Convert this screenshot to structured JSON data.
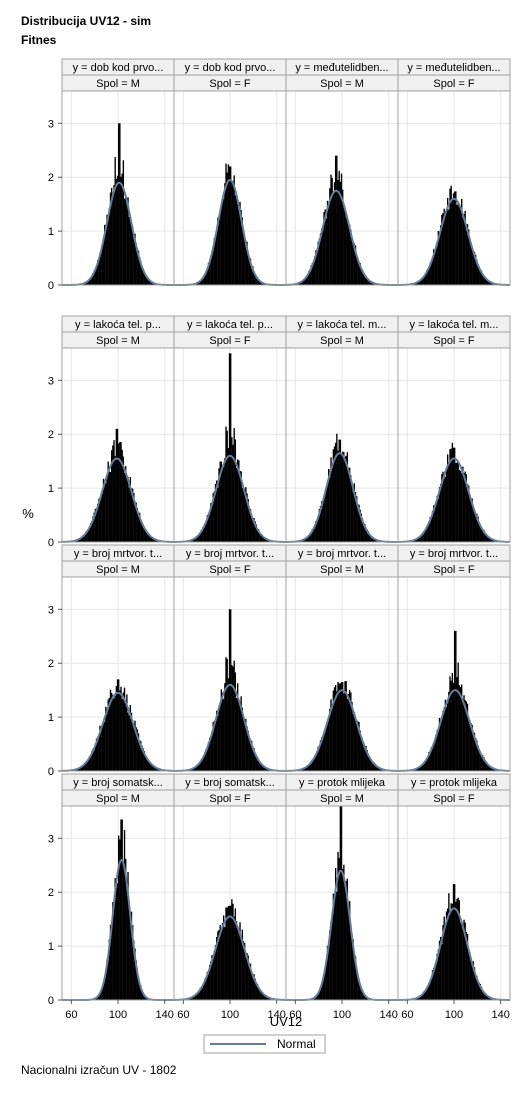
{
  "titles": {
    "title1": "Distribucija UV12 - sim",
    "title2": "Fitnes"
  },
  "footer": "Nacionalni izračun UV - 1802",
  "chart_data": {
    "type": "histogram-panel",
    "xlabel": "UV12",
    "ylabel": "%",
    "xticks": [
      60,
      100,
      140
    ],
    "yticks": [
      0,
      1,
      2,
      3
    ],
    "xlim": [
      52,
      148
    ],
    "ylim": [
      0,
      3.6
    ],
    "grid": true,
    "legend": {
      "position": "bottom",
      "items": [
        {
          "label": "Normal",
          "color": "#667b99"
        }
      ]
    },
    "colors": {
      "bars": "#000000",
      "normal": "#667b99",
      "header_bg": "#f0f0f0",
      "grid": "#e6e6e6"
    },
    "panels": [
      {
        "row": 0,
        "col": 0,
        "y": "y = dob kod prvo...",
        "spol": "Spol = M",
        "normal_peak": 1.9,
        "sd": 10.5,
        "mean": 101,
        "hist_peak": 3.0
      },
      {
        "row": 0,
        "col": 1,
        "y": "y = dob kod prvo...",
        "spol": "Spol = F",
        "normal_peak": 1.95,
        "sd": 10,
        "mean": 100,
        "hist_peak": 2.2
      },
      {
        "row": 0,
        "col": 2,
        "y": "y = međutelidben...",
        "spol": "Spol = M",
        "normal_peak": 1.75,
        "sd": 11.5,
        "mean": 95,
        "hist_peak": 2.4
      },
      {
        "row": 0,
        "col": 3,
        "y": "y = međutelidben...",
        "spol": "Spol = F",
        "normal_peak": 1.6,
        "sd": 12,
        "mean": 100,
        "hist_peak": 1.7
      },
      {
        "row": 1,
        "col": 0,
        "y": "y = lakoća tel. p...",
        "spol": "Spol = M",
        "normal_peak": 1.55,
        "sd": 12.5,
        "mean": 99,
        "hist_peak": 2.1
      },
      {
        "row": 1,
        "col": 1,
        "y": "y = lakoća tel. p...",
        "spol": "Spol = F",
        "normal_peak": 1.6,
        "sd": 12,
        "mean": 100,
        "hist_peak": 3.5
      },
      {
        "row": 1,
        "col": 2,
        "y": "y = lakoća tel. m...",
        "spol": "Spol = M",
        "normal_peak": 1.65,
        "sd": 11.5,
        "mean": 98,
        "hist_peak": 1.9
      },
      {
        "row": 1,
        "col": 3,
        "y": "y = lakoća tel. m...",
        "spol": "Spol = F",
        "normal_peak": 1.55,
        "sd": 12.5,
        "mean": 100,
        "hist_peak": 1.75
      },
      {
        "row": 2,
        "col": 0,
        "y": "y = broj mrtvor. t...",
        "spol": "Spol = M",
        "normal_peak": 1.45,
        "sd": 13,
        "mean": 100,
        "hist_peak": 1.7
      },
      {
        "row": 2,
        "col": 1,
        "y": "y = broj mrtvor. t...",
        "spol": "Spol = F",
        "normal_peak": 1.6,
        "sd": 12,
        "mean": 100,
        "hist_peak": 3.0
      },
      {
        "row": 2,
        "col": 2,
        "y": "y = broj mrtvor. t...",
        "spol": "Spol = M",
        "normal_peak": 1.5,
        "sd": 12.5,
        "mean": 100,
        "hist_peak": 1.65
      },
      {
        "row": 2,
        "col": 3,
        "y": "y = broj mrtvor. t...",
        "spol": "Spol = F",
        "normal_peak": 1.5,
        "sd": 12.5,
        "mean": 101,
        "hist_peak": 2.6
      },
      {
        "row": 3,
        "col": 0,
        "y": "y = broj somatsk...",
        "spol": "Spol = M",
        "normal_peak": 2.6,
        "sd": 7.5,
        "mean": 103,
        "hist_peak": 3.35
      },
      {
        "row": 3,
        "col": 1,
        "y": "y = broj somatsk...",
        "spol": "Spol = F",
        "normal_peak": 1.55,
        "sd": 12.5,
        "mean": 100,
        "hist_peak": 1.75
      },
      {
        "row": 3,
        "col": 2,
        "y": "y = protok mlijeka",
        "spol": "Spol = M",
        "normal_peak": 2.4,
        "sd": 8,
        "mean": 99,
        "hist_peak": 3.6
      },
      {
        "row": 3,
        "col": 3,
        "y": "y = protok mlijeka",
        "spol": "Spol = F",
        "normal_peak": 1.7,
        "sd": 11.5,
        "mean": 100,
        "hist_peak": 2.15
      }
    ]
  }
}
